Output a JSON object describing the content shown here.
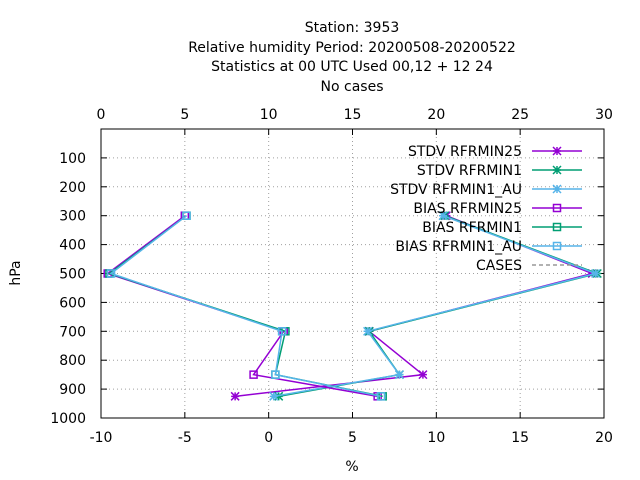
{
  "chart_data": {
    "type": "line",
    "title_lines": [
      "Station:     3953",
      "Relative humidity  Period: 20200508-20200522",
      "Statistics at 00 UTC  Used  00,12  + 12 24",
      "No cases"
    ],
    "xlabel": "%",
    "ylabel": "hPa",
    "bottom_axis": {
      "range": [
        -10,
        20
      ],
      "ticks": [
        -10,
        -5,
        0,
        5,
        10,
        15,
        20
      ]
    },
    "top_axis": {
      "range": [
        0,
        30
      ],
      "ticks": [
        0,
        5,
        10,
        15,
        20,
        25,
        30
      ]
    },
    "y_axis": {
      "range": [
        1000,
        0
      ],
      "ticks": [
        100,
        200,
        300,
        400,
        500,
        600,
        700,
        800,
        900,
        1000
      ],
      "inverted": true
    },
    "grid": true,
    "legend_position": "top-right",
    "series": [
      {
        "name": "STDV RFRMIN25",
        "axis": "top",
        "color": "#9400d3",
        "marker": "star",
        "points": [
          [
            20.6,
            300
          ],
          [
            29.3,
            500
          ],
          [
            16.0,
            700
          ],
          [
            19.2,
            850
          ],
          [
            8.0,
            925
          ]
        ]
      },
      {
        "name": "STDV RFRMIN1",
        "axis": "top",
        "color": "#009e73",
        "marker": "star",
        "points": [
          [
            20.5,
            300
          ],
          [
            29.6,
            500
          ],
          [
            16.0,
            700
          ],
          [
            17.8,
            850
          ],
          [
            10.6,
            925
          ]
        ]
      },
      {
        "name": "STDV RFRMIN1_AU",
        "axis": "top",
        "color": "#56b4e9",
        "marker": "star",
        "points": [
          [
            20.4,
            300
          ],
          [
            29.5,
            500
          ],
          [
            15.9,
            700
          ],
          [
            17.8,
            850
          ],
          [
            10.3,
            925
          ]
        ]
      },
      {
        "name": "BIAS RFRMIN25",
        "axis": "bottom",
        "color": "#9400d3",
        "marker": "square",
        "points": [
          [
            -5.0,
            300
          ],
          [
            -9.6,
            500
          ],
          [
            0.9,
            700
          ],
          [
            -0.9,
            850
          ],
          [
            6.5,
            925
          ]
        ]
      },
      {
        "name": "BIAS RFRMIN1",
        "axis": "bottom",
        "color": "#009e73",
        "marker": "square",
        "points": [
          [
            -4.9,
            300
          ],
          [
            -9.5,
            500
          ],
          [
            1.0,
            700
          ],
          [
            0.4,
            850
          ],
          [
            6.8,
            925
          ]
        ]
      },
      {
        "name": "BIAS RFRMIN1_AU",
        "axis": "bottom",
        "color": "#56b4e9",
        "marker": "square",
        "points": [
          [
            -4.9,
            300
          ],
          [
            -9.4,
            500
          ],
          [
            0.8,
            700
          ],
          [
            0.4,
            850
          ],
          [
            6.7,
            925
          ]
        ]
      },
      {
        "name": "CASES",
        "axis": "top",
        "color": "#999999",
        "marker": "none",
        "dashed": true,
        "points": []
      }
    ]
  }
}
